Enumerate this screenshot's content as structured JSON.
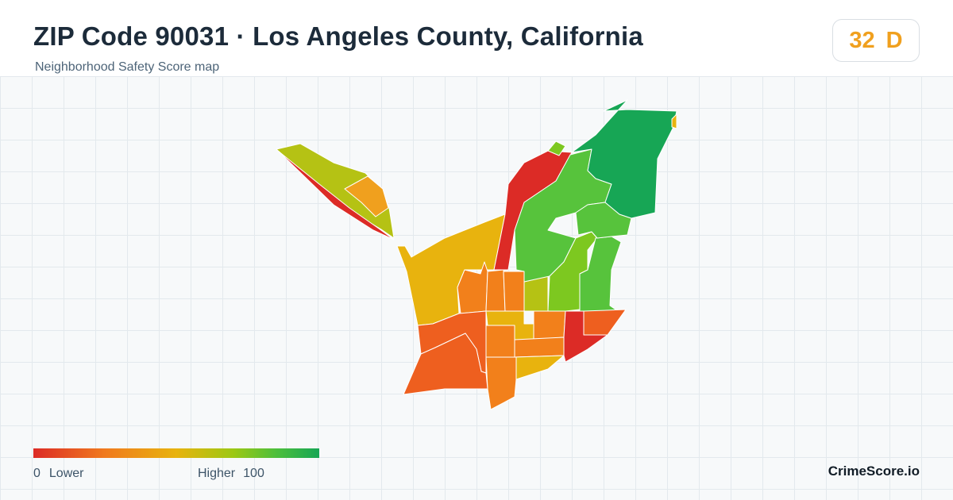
{
  "header": {
    "title": "ZIP Code 90031 · Los Angeles County, California",
    "subtitle": "Neighborhood Safety Score map"
  },
  "score": {
    "value": "32",
    "grade": "D",
    "color": "#f0a01e"
  },
  "legend": {
    "low_value": "0",
    "low_label": "Lower",
    "high_label": "Higher",
    "high_value": "100",
    "gradient_colors": [
      "#dc2b26",
      "#f07a1e",
      "#e8b30e",
      "#9cc814",
      "#4cbf3c",
      "#17a655"
    ]
  },
  "brand": "CrimeScore.io",
  "map": {
    "basemap": "light grid",
    "region_colors": {
      "very_low": "#dc2b26",
      "low": "#ee5f1f",
      "low_mid": "#f2801b",
      "mid": "#e8b30e",
      "mid_high": "#b5c214",
      "high": "#7dc820",
      "higher": "#57c33c",
      "highest": "#17a655"
    }
  }
}
